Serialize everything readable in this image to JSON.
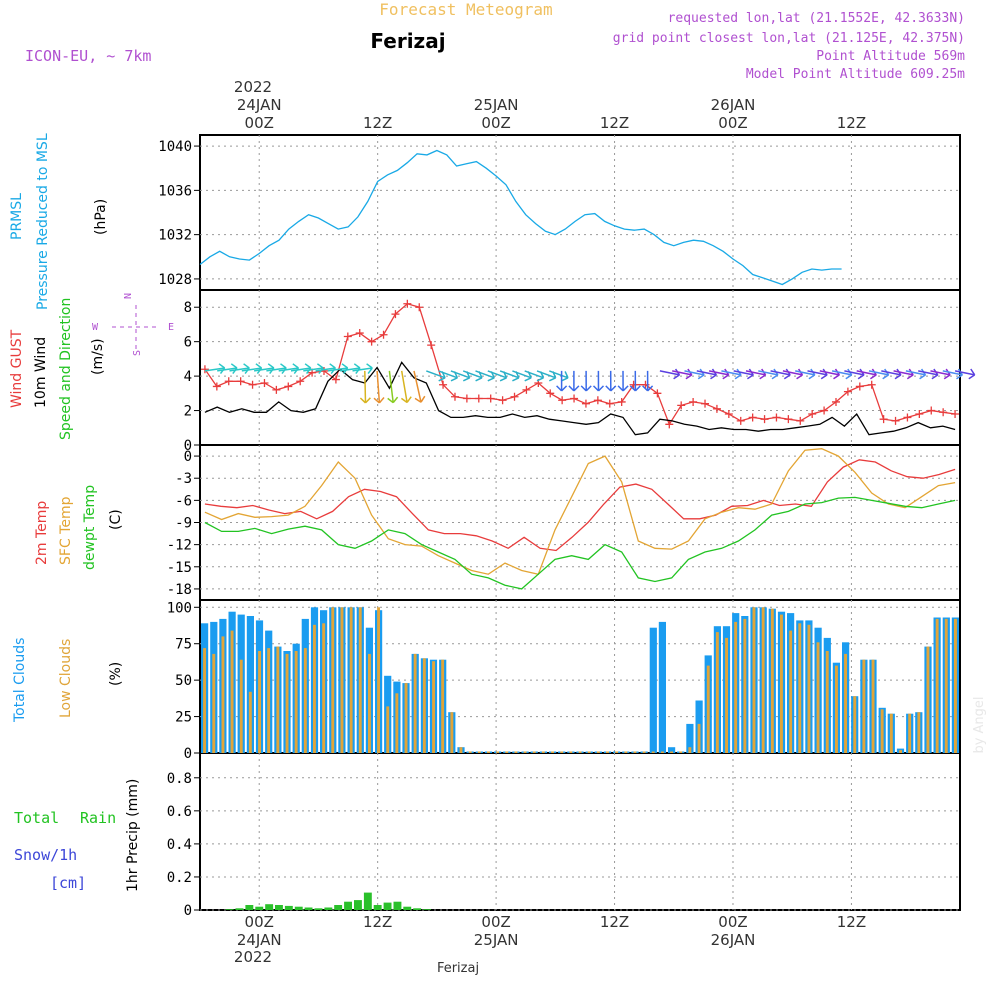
{
  "header": {
    "title": "Forecast Meteogram",
    "location": "Ferizaj",
    "model": "ICON-EU,  ~ 7km",
    "requested": "requested lon,lat (21.1552E, 42.3633N)",
    "gridpoint": "grid point closest lon,lat (21.125E, 42.375N)",
    "point_alt": "Point Altitude 569m",
    "model_alt": "Model Point Altitude 609.25m",
    "credit": "by Angel",
    "footer_name": "Ferizaj"
  },
  "time_axis": {
    "top_year": "2022",
    "bottom_year": "2022",
    "ticks": [
      {
        "t": 0,
        "time": "00Z",
        "date": "24JAN"
      },
      {
        "t": 12,
        "time": "12Z",
        "date": ""
      },
      {
        "t": 24,
        "time": "00Z",
        "date": "25JAN"
      },
      {
        "t": 36,
        "time": "12Z",
        "date": ""
      },
      {
        "t": 48,
        "time": "00Z",
        "date": "26JAN"
      },
      {
        "t": 60,
        "time": "12Z",
        "date": ""
      }
    ]
  },
  "panel_labels": {
    "pressure": [
      "PRMSL",
      "Pressure Reduced to MSL",
      "(hPa)"
    ],
    "wind": [
      "Wind GUST",
      "10m Wind",
      "Speed and Direction",
      "(m/s)"
    ],
    "compass": {
      "w": "W",
      "e": "E",
      "n": "N",
      "s": "S"
    },
    "temp": [
      "2m Temp",
      "SFC Temp",
      "dewpt Temp",
      "(C)"
    ],
    "clouds": [
      "Total Clouds",
      "Low Clouds",
      "(%)"
    ],
    "precip_left": [
      "Total",
      "Rain",
      "Snow/1h",
      "[cm]"
    ],
    "precip_axis": "1hr Precip (mm)"
  },
  "colors": {
    "pressure": "#19a9e6",
    "gust": "#e83c3c",
    "wind": "#000000",
    "sfc": "#e3a534",
    "dewpt": "#22c322",
    "total_cloud": "#1a9cf0",
    "low_cloud": "#e0a53a",
    "rain": "#2ac02a",
    "snow": "#3c46d8",
    "label_purple": "#b050d0"
  },
  "chart_data": [
    {
      "type": "line",
      "name": "pressure",
      "ylim": [
        1027,
        1041
      ],
      "yticks": [
        1028,
        1032,
        1036,
        1040
      ],
      "x_hours": [
        -6,
        -5,
        -4,
        -3,
        -2,
        -1,
        0,
        1,
        2,
        3,
        4,
        5,
        6,
        7,
        8,
        9,
        10,
        11,
        12,
        13,
        14,
        15,
        16,
        17,
        18,
        19,
        20,
        21,
        22,
        23,
        24,
        25,
        26,
        27,
        28,
        29,
        30,
        31,
        32,
        33,
        34,
        35,
        36,
        37,
        38,
        39,
        40,
        41,
        42,
        43,
        44,
        45,
        46,
        47,
        48,
        49,
        50,
        51,
        52,
        53,
        54,
        55,
        56,
        57,
        58,
        59,
        60,
        61,
        62,
        63,
        64,
        65,
        66,
        67,
        68,
        69,
        70,
        71
      ],
      "series": [
        {
          "values": [
            1029.3,
            1030.0,
            1030.5,
            1030.0,
            1029.8,
            1029.7,
            1030.3,
            1031.0,
            1031.5,
            1032.5,
            1033.2,
            1033.8,
            1033.5,
            1033.0,
            1032.5,
            1032.7,
            1033.6,
            1035.0,
            1036.8,
            1037.4,
            1037.8,
            1038.5,
            1039.3,
            1039.2,
            1039.6,
            1039.2,
            1038.2,
            1038.4,
            1038.6,
            1038.0,
            1037.3,
            1036.5,
            1035.0,
            1033.8,
            1033.0,
            1032.3,
            1032.0,
            1032.5,
            1033.2,
            1033.8,
            1033.9,
            1033.2,
            1032.8,
            1032.5,
            1032.4,
            1032.5,
            1032.0,
            1031.3,
            1031.0,
            1031.3,
            1031.5,
            1031.4,
            1031.0,
            1030.5,
            1029.8,
            1029.2,
            1028.4,
            1028.1,
            1027.8,
            1027.5,
            1028.0,
            1028.6,
            1028.9,
            1028.8,
            1028.9,
            1028.9
          ]
        }
      ]
    },
    {
      "type": "line",
      "name": "wind",
      "ylim": [
        0,
        9
      ],
      "yticks": [
        0,
        2,
        4,
        6,
        8
      ],
      "series": [
        {
          "name": "Wind GUST",
          "values": [
            4.4,
            3.4,
            3.7,
            3.7,
            3.5,
            3.6,
            3.2,
            3.4,
            3.7,
            4.2,
            4.3,
            3.8,
            6.3,
            6.5,
            6.0,
            6.4,
            7.6,
            8.2,
            8.0,
            5.8,
            3.5,
            2.8,
            2.7,
            2.7,
            2.7,
            2.6,
            2.8,
            3.2,
            3.6,
            3.0,
            2.6,
            2.7,
            2.4,
            2.6,
            2.4,
            2.5,
            3.5,
            3.5,
            3.0,
            1.2,
            2.3,
            2.5,
            2.4,
            2.1,
            1.8,
            1.4,
            1.6,
            1.5,
            1.6,
            1.5,
            1.4,
            1.8,
            2.0,
            2.5,
            3.1,
            3.4,
            3.5,
            1.5,
            1.4,
            1.6,
            1.8,
            2.0,
            1.9,
            1.8
          ]
        },
        {
          "name": "10m Wind",
          "values": [
            1.9,
            2.2,
            1.9,
            2.1,
            1.9,
            1.9,
            2.5,
            2.0,
            1.9,
            2.1,
            3.7,
            4.4,
            3.8,
            3.6,
            4.5,
            3.3,
            4.8,
            3.9,
            3.6,
            2.0,
            1.6,
            1.6,
            1.7,
            1.6,
            1.6,
            1.8,
            1.6,
            1.7,
            1.5,
            1.4,
            1.3,
            1.2,
            1.3,
            1.8,
            1.6,
            0.6,
            0.7,
            1.5,
            1.4,
            1.2,
            1.1,
            0.9,
            1.0,
            0.9,
            0.9,
            0.8,
            0.9,
            0.9,
            1.0,
            1.1,
            1.2,
            1.6,
            1.1,
            1.8,
            0.6,
            0.7,
            0.8,
            1.0,
            1.3,
            1.0,
            1.1,
            0.9
          ]
        }
      ]
    },
    {
      "type": "line",
      "name": "temperature",
      "ylim": [
        -19.5,
        1.5
      ],
      "yticks": [
        0,
        -3,
        -6,
        -9,
        -12,
        -15,
        -18
      ],
      "series": [
        {
          "name": "2m Temp",
          "values": [
            -6.5,
            -6.8,
            -7.0,
            -6.7,
            -7.3,
            -7.8,
            -7.5,
            -8.5,
            -7.5,
            -5.5,
            -4.5,
            -4.8,
            -5.5,
            -7.8,
            -10.0,
            -10.5,
            -10.5,
            -10.8,
            -11.5,
            -12.5,
            -11.0,
            -12.5,
            -12.8,
            -11.0,
            -9.0,
            -6.5,
            -4.2,
            -3.8,
            -4.5,
            -6.5,
            -8.5,
            -8.5,
            -8.0,
            -6.8,
            -6.7,
            -6.0,
            -6.7,
            -6.5,
            -6.8,
            -3.5,
            -1.5,
            -0.5,
            -0.8,
            -2.0,
            -2.8,
            -3.0,
            -2.5,
            -1.8
          ]
        },
        {
          "name": "SFC Temp",
          "values": [
            -7.6,
            -8.6,
            -7.8,
            -8.3,
            -8.2,
            -8.0,
            -6.8,
            -4.0,
            -0.8,
            -3.0,
            -8.0,
            -11.2,
            -12.0,
            -12.2,
            -13.5,
            -14.5,
            -15.5,
            -16.0,
            -14.5,
            -15.5,
            -16.0,
            -10.0,
            -5.5,
            -1.0,
            0.0,
            -3.5,
            -11.5,
            -12.5,
            -12.6,
            -11.5,
            -8.5,
            -7.6,
            -7.0,
            -7.2,
            -6.5,
            -2.0,
            0.8,
            1.0,
            0.0,
            -2.2,
            -5.0,
            -6.5,
            -7.0,
            -5.5,
            -4.0,
            -3.6
          ]
        },
        {
          "name": "dewpt Temp",
          "values": [
            -9.0,
            -10.2,
            -10.2,
            -9.8,
            -10.5,
            -9.9,
            -9.5,
            -10.0,
            -12.0,
            -12.5,
            -11.5,
            -10.0,
            -10.5,
            -12.0,
            -13.0,
            -14.0,
            -16.0,
            -16.5,
            -17.5,
            -18.0,
            -16.0,
            -14.0,
            -13.5,
            -14.0,
            -12.0,
            -13.0,
            -16.5,
            -17.0,
            -16.5,
            -14.0,
            -13.0,
            -12.5,
            -11.5,
            -10.0,
            -8.0,
            -7.5,
            -6.5,
            -6.3,
            -5.7,
            -5.6,
            -6.0,
            -6.4,
            -6.8,
            -7.0,
            -6.5,
            -6.0
          ]
        }
      ]
    },
    {
      "type": "bar",
      "name": "clouds",
      "ylim": [
        0,
        105
      ],
      "yticks": [
        0,
        25,
        50,
        75,
        100
      ],
      "series": [
        {
          "name": "Total Clouds",
          "values": [
            89,
            90,
            92,
            97,
            95,
            94,
            91,
            84,
            73,
            70,
            75,
            92,
            100,
            98,
            100,
            100,
            100,
            100,
            86,
            98,
            53,
            49,
            48,
            68,
            65,
            64,
            64,
            28,
            4,
            1,
            1,
            1,
            1,
            1,
            1,
            1,
            1,
            1,
            1,
            1,
            1,
            1,
            1,
            1,
            1,
            1,
            1,
            1,
            1,
            86,
            90,
            4,
            1,
            20,
            36,
            67,
            87,
            87,
            96,
            94,
            100,
            100,
            99,
            97,
            96,
            91,
            91,
            86,
            79,
            62,
            76,
            39,
            64,
            64,
            31,
            27,
            3,
            27,
            28,
            73,
            93,
            93,
            93
          ]
        },
        {
          "name": "Low Clouds",
          "values": [
            72,
            68,
            80,
            84,
            64,
            42,
            70,
            72,
            73,
            68,
            70,
            72,
            88,
            89,
            100,
            100,
            100,
            100,
            68,
            100,
            32,
            41,
            48,
            68,
            65,
            63,
            64,
            28,
            4,
            1,
            1,
            1,
            1,
            1,
            1,
            1,
            1,
            1,
            1,
            1,
            1,
            1,
            1,
            1,
            1,
            1,
            1,
            1,
            1,
            1,
            1,
            1,
            1,
            4,
            20,
            60,
            83,
            79,
            90,
            92,
            100,
            100,
            99,
            95,
            84,
            89,
            88,
            76,
            70,
            60,
            68,
            39,
            64,
            64,
            30,
            27,
            2,
            27,
            28,
            73,
            92,
            92,
            92
          ]
        }
      ]
    },
    {
      "type": "bar",
      "name": "precipitation",
      "ylim": [
        0,
        0.95
      ],
      "yticks": [
        0,
        0.2,
        0.4,
        0.6,
        0.8
      ],
      "series": [
        {
          "name": "Total Rain",
          "values": [
            0,
            0,
            0.005,
            0.01,
            0.03,
            0.02,
            0.035,
            0.03,
            0.025,
            0.02,
            0.015,
            0.01,
            0.015,
            0.03,
            0.05,
            0.06,
            0.105,
            0.03,
            0.045,
            0.05,
            0.02,
            0.01,
            0.005
          ]
        }
      ]
    }
  ]
}
